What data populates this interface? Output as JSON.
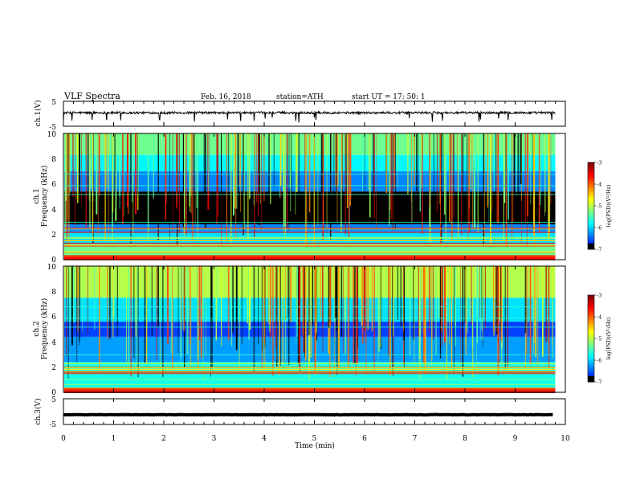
{
  "header": {
    "title": "VLF  Spectra",
    "date": "Feb. 16, 2018",
    "station": "station=ATH",
    "start": "start  UT  =   17: 50: 1"
  },
  "chart_data": [
    {
      "type": "line",
      "panel": "ch1-waveform",
      "ylabel": "ch.1(V)",
      "ylim": [
        -5,
        5
      ],
      "yticks": [
        "5",
        "-5"
      ],
      "x_range_min": [
        0,
        9.8
      ],
      "baseline_v": 0.4,
      "noise_amplitude_v": 0.9
    },
    {
      "type": "heatmap",
      "panel": "ch1-spectrogram",
      "ylabel": "ch.1\nFrequency (kHz)",
      "ylim": [
        0,
        10
      ],
      "yticks": [
        "0",
        "2",
        "4",
        "6",
        "8",
        "10"
      ],
      "x_range_min": [
        0,
        9.8
      ],
      "color_scale": "jet",
      "colorbar": {
        "label": "log(PSD)(V²/Hz)",
        "range": [
          -7,
          -3
        ],
        "ticks": [
          "-3",
          "-4",
          "-5",
          "-6",
          "-7"
        ]
      },
      "bands_khz": [
        {
          "range": [
            0,
            0.35
          ],
          "level": -3.6
        },
        {
          "range": [
            0.35,
            1.2
          ],
          "level": -5.3
        },
        {
          "range": [
            1.2,
            2.2
          ],
          "level": -5.9
        },
        {
          "range": [
            2.2,
            2.8
          ],
          "level": -6.3
        },
        {
          "range": [
            2.8,
            5.4
          ],
          "level": -6.9
        },
        {
          "range": [
            5.4,
            7.0
          ],
          "level": -6.3
        },
        {
          "range": [
            7.0,
            8.3
          ],
          "level": -5.8
        },
        {
          "range": [
            8.3,
            10
          ],
          "level": -5.3
        }
      ]
    },
    {
      "type": "heatmap",
      "panel": "ch2-spectrogram",
      "ylabel": "ch.2\nFrequency (kHz)",
      "ylim": [
        0,
        10
      ],
      "yticks": [
        "0",
        "2",
        "4",
        "6",
        "8",
        "10"
      ],
      "x_range_min": [
        0,
        9.8
      ],
      "color_scale": "jet",
      "colorbar": {
        "label": "log(PSD)(V²/Hz)",
        "range": [
          -7,
          -3
        ],
        "ticks": [
          "-3",
          "-4",
          "-5",
          "-6",
          "-7"
        ]
      },
      "bands_khz": [
        {
          "range": [
            0,
            0.35
          ],
          "level": -3.8
        },
        {
          "range": [
            0.35,
            2.4
          ],
          "level": -5.7
        },
        {
          "range": [
            2.4,
            4.4
          ],
          "level": -6.2
        },
        {
          "range": [
            4.4,
            5.6
          ],
          "level": -6.6
        },
        {
          "range": [
            5.6,
            7.5
          ],
          "level": -5.9
        },
        {
          "range": [
            7.5,
            10
          ],
          "level": -5.0
        }
      ]
    },
    {
      "type": "line",
      "panel": "ch3-waveform",
      "ylabel": "ch.3(V)",
      "ylim": [
        -5,
        5
      ],
      "yticks": [
        "5",
        "-5"
      ],
      "x_range_min": [
        0,
        9.8
      ],
      "baseline_v": -1.2,
      "noise_amplitude_v": 0.15
    }
  ],
  "x_axis": {
    "label": "Time (min)",
    "xlim": [
      0,
      10
    ],
    "ticks": [
      "0",
      "1",
      "2",
      "3",
      "4",
      "5",
      "6",
      "7",
      "8",
      "9",
      "10"
    ]
  }
}
